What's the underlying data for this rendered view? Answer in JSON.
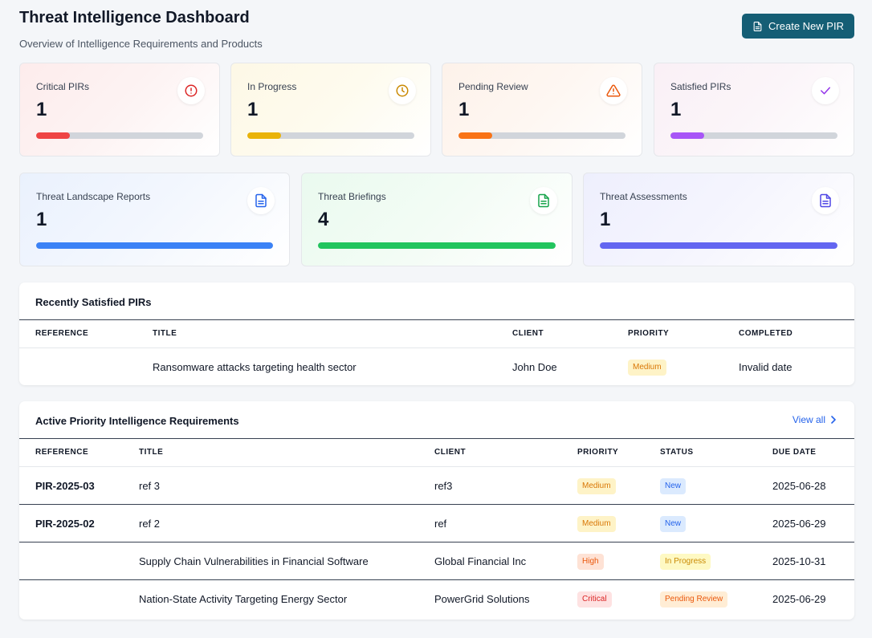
{
  "header": {
    "title": "Threat Intelligence Dashboard",
    "subtitle": "Overview of Intelligence Requirements and Products",
    "create_button": "Create New PIR"
  },
  "pir_stats": [
    {
      "label": "Critical PIRs",
      "value": "1",
      "icon": "alert-circle-icon",
      "color": "#ef4444",
      "progress": 0.2
    },
    {
      "label": "In Progress",
      "value": "1",
      "icon": "clock-icon",
      "color": "#eab308",
      "progress": 0.2
    },
    {
      "label": "Pending Review",
      "value": "1",
      "icon": "alert-triangle-icon",
      "color": "#f97316",
      "progress": 0.2
    },
    {
      "label": "Satisfied PIRs",
      "value": "1",
      "icon": "check-icon",
      "color": "#a855f7",
      "progress": 0.2
    }
  ],
  "product_stats": [
    {
      "label": "Threat Landscape Reports",
      "value": "1",
      "icon": "document-icon",
      "color": "#3b82f6",
      "progress": 1.0
    },
    {
      "label": "Threat Briefings",
      "value": "4",
      "icon": "document-icon",
      "color": "#22c55e",
      "progress": 1.0
    },
    {
      "label": "Threat Assessments",
      "value": "1",
      "icon": "document-icon",
      "color": "#6366f1",
      "progress": 1.0
    }
  ],
  "recent": {
    "title": "Recently Satisfied PIRs",
    "columns": [
      "REFERENCE",
      "TITLE",
      "CLIENT",
      "PRIORITY",
      "COMPLETED"
    ],
    "rows": [
      {
        "reference": "",
        "title": "Ransomware attacks targeting health sector",
        "client": "John Doe",
        "priority": "Medium",
        "completed": "Invalid date"
      }
    ]
  },
  "active": {
    "title": "Active Priority Intelligence Requirements",
    "view_all": "View all",
    "columns": [
      "REFERENCE",
      "TITLE",
      "CLIENT",
      "PRIORITY",
      "STATUS",
      "DUE DATE"
    ],
    "rows": [
      {
        "reference": "PIR-2025-03",
        "title": "ref 3",
        "client": "ref3",
        "priority": "Medium",
        "status": "New",
        "due": "2025-06-28"
      },
      {
        "reference": "PIR-2025-02",
        "title": "ref 2",
        "client": "ref",
        "priority": "Medium",
        "status": "New",
        "due": "2025-06-29"
      },
      {
        "reference": "",
        "title": "Supply Chain Vulnerabilities in Financial Software",
        "client": "Global Financial Inc",
        "priority": "High",
        "status": "In Progress",
        "due": "2025-10-31"
      },
      {
        "reference": "",
        "title": "Nation-State Activity Targeting Energy Sector",
        "client": "PowerGrid Solutions",
        "priority": "Critical",
        "status": "Pending Review",
        "due": "2025-06-29"
      }
    ]
  }
}
